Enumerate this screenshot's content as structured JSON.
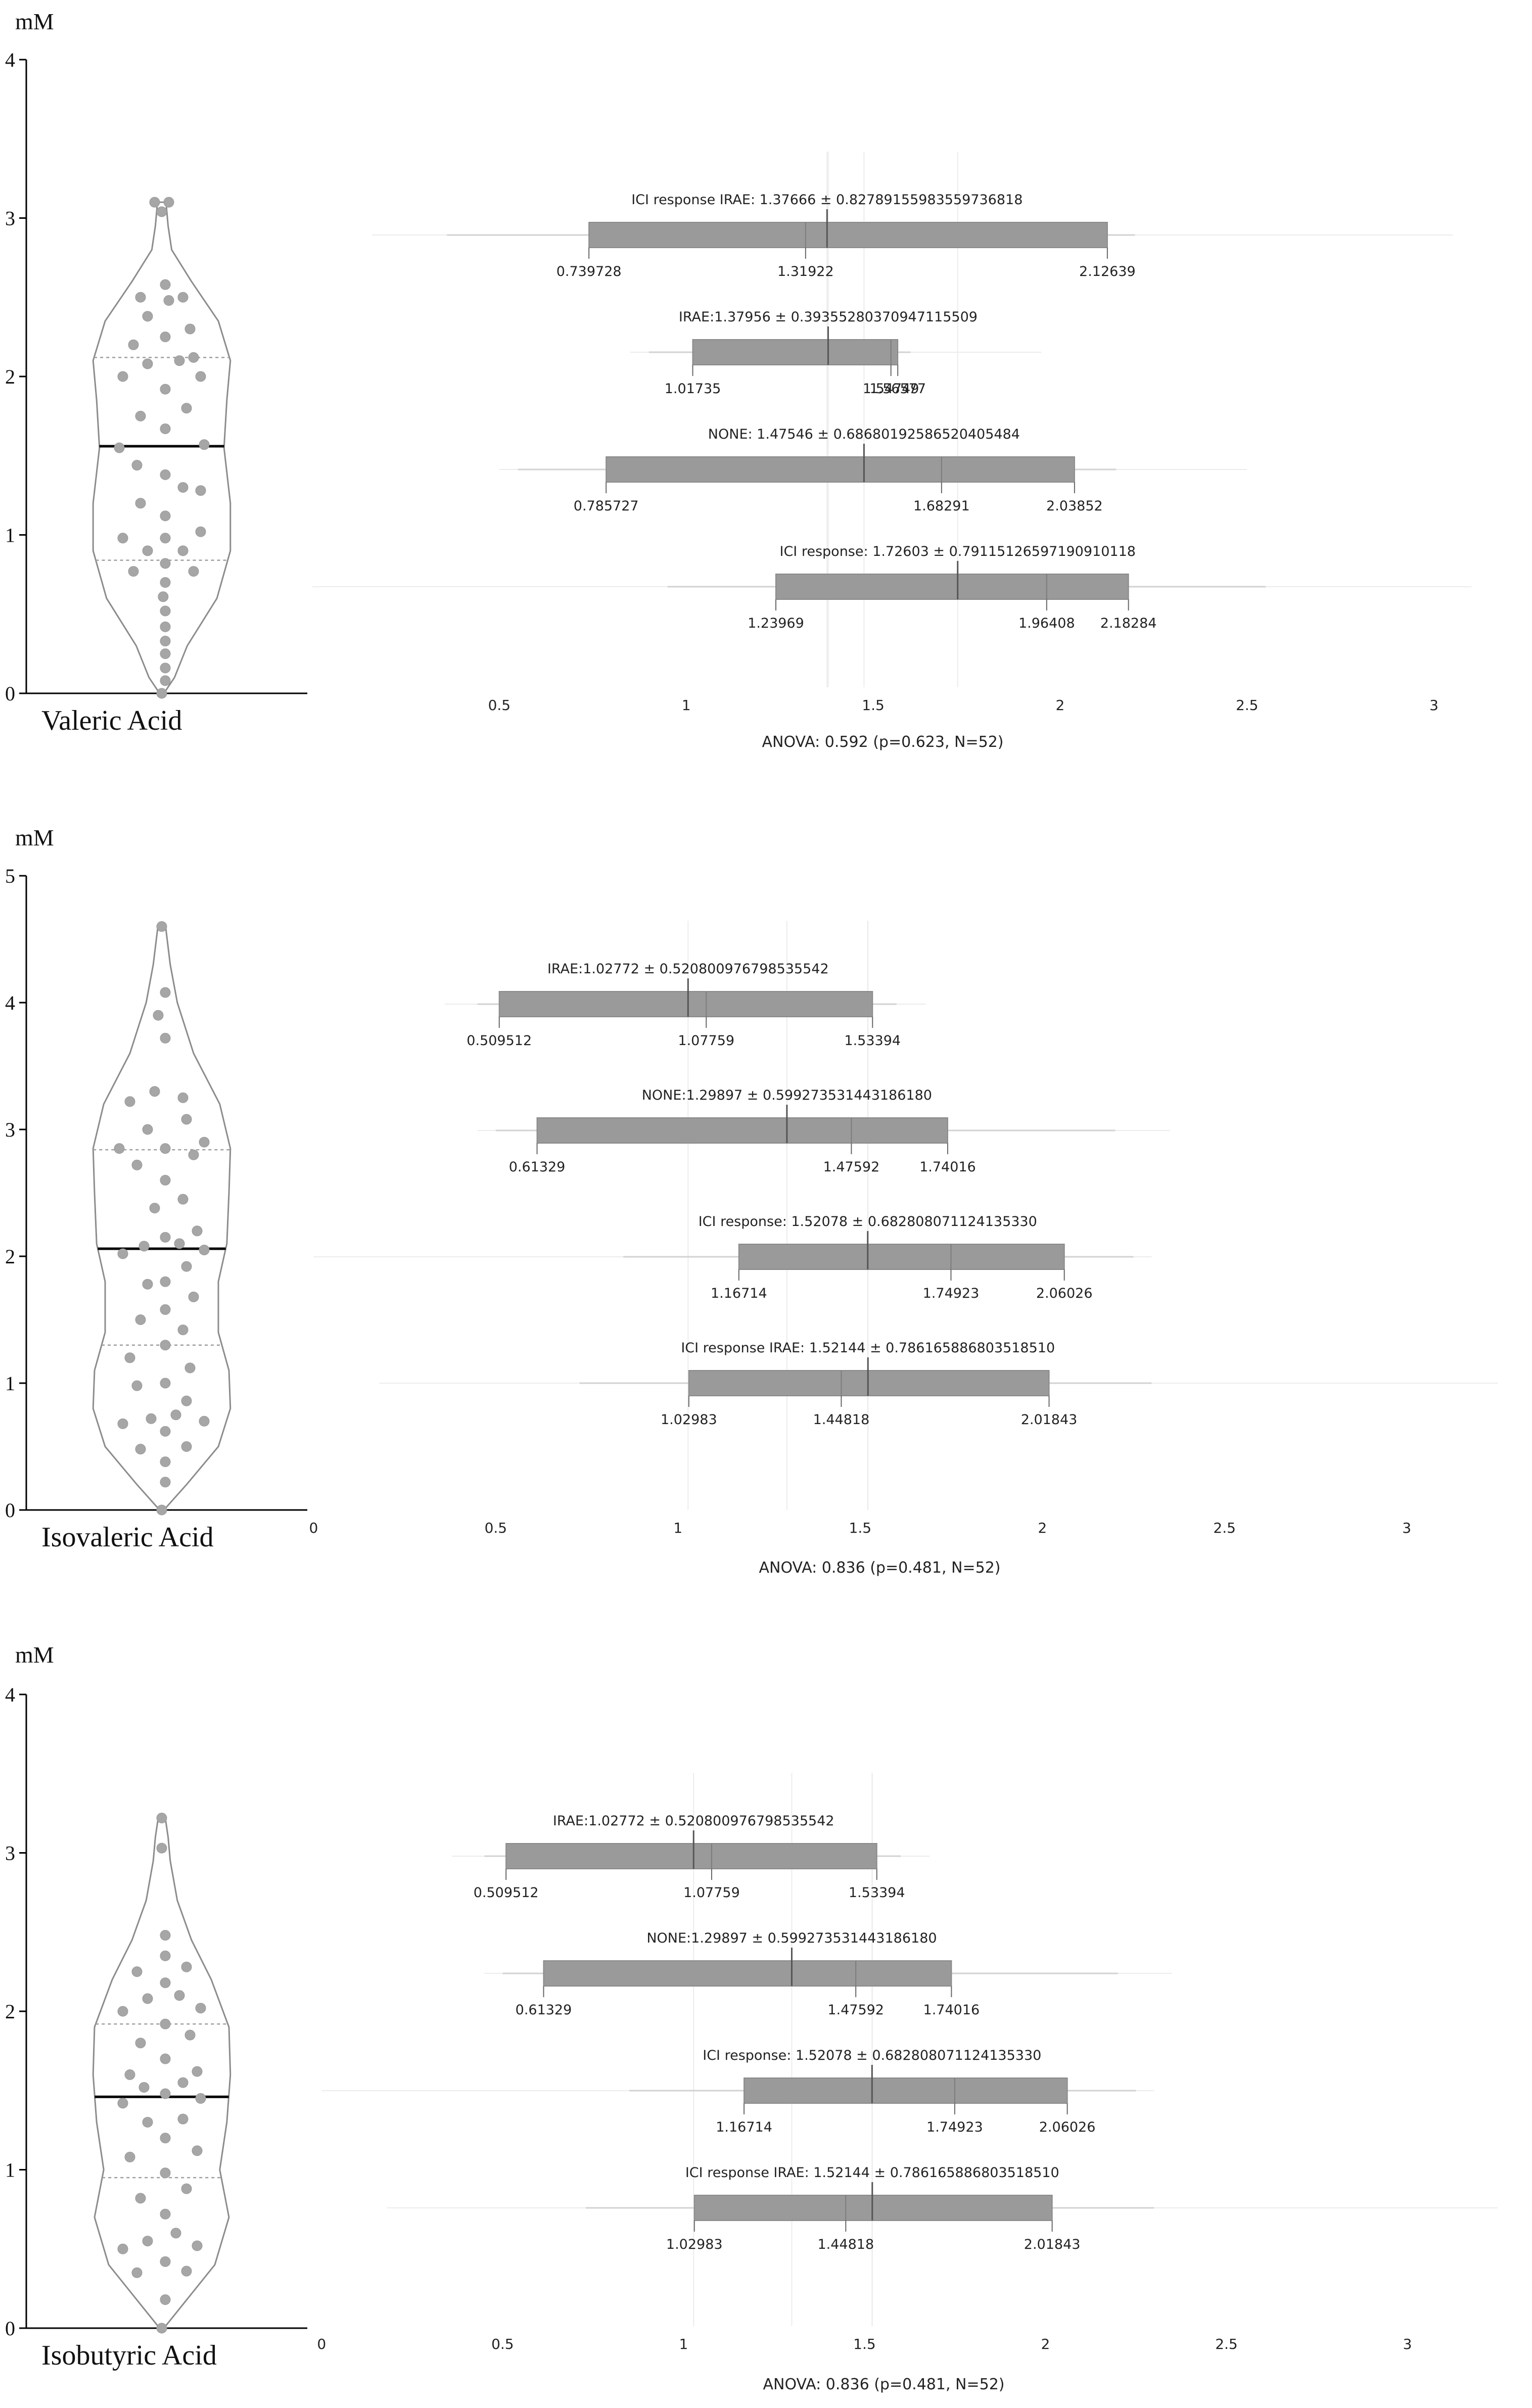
{
  "colors": {
    "box_fill": "#9a9a9a",
    "box_stroke": "#8a8a8a",
    "whisker": "#e2e2e2",
    "axis": "#000000",
    "violin_outline": "#8c8c8c",
    "dot": "#a6a6a6",
    "median_line": "#000000",
    "quartile_line": "#9e9e9e",
    "text": "#222222",
    "grid": "#ececec"
  },
  "chart_data": [
    {
      "panel": "valeric",
      "type": "violin+box",
      "unit_label": "mM",
      "violin": {
        "label": "Valeric Acid",
        "yticks": [
          "0",
          "1",
          "2",
          "3",
          "4"
        ],
        "ylim": [
          0,
          4
        ],
        "median": 1.56,
        "q1": 0.84,
        "q3": 2.12,
        "width_profile": [
          [
            0,
            0.03
          ],
          [
            0.1,
            0.18
          ],
          [
            0.3,
            0.36
          ],
          [
            0.6,
            0.78
          ],
          [
            0.9,
            0.97
          ],
          [
            1.2,
            0.97
          ],
          [
            1.55,
            0.88
          ],
          [
            1.85,
            0.92
          ],
          [
            2.1,
            0.97
          ],
          [
            2.35,
            0.8
          ],
          [
            2.6,
            0.42
          ],
          [
            2.8,
            0.14
          ],
          [
            2.95,
            0.09
          ],
          [
            3.1,
            0.06
          ]
        ],
        "points": [
          [
            0.0,
            0
          ],
          [
            0.08,
            0.05
          ],
          [
            0.16,
            0.05
          ],
          [
            0.25,
            0.05
          ],
          [
            0.33,
            0.05
          ],
          [
            0.42,
            0.05
          ],
          [
            0.52,
            0.05
          ],
          [
            0.61,
            0.02
          ],
          [
            0.7,
            0.05
          ],
          [
            0.77,
            -0.4
          ],
          [
            0.77,
            0.45
          ],
          [
            0.82,
            0.05
          ],
          [
            0.9,
            -0.2
          ],
          [
            0.9,
            0.3
          ],
          [
            0.98,
            -0.55
          ],
          [
            0.98,
            0.05
          ],
          [
            1.02,
            0.55
          ],
          [
            1.12,
            0.05
          ],
          [
            1.2,
            -0.3
          ],
          [
            1.28,
            0.55
          ],
          [
            1.3,
            0.3
          ],
          [
            1.38,
            0.05
          ],
          [
            1.44,
            -0.35
          ],
          [
            1.55,
            -0.6
          ],
          [
            1.57,
            0.6
          ],
          [
            1.67,
            0.05
          ],
          [
            1.75,
            -0.3
          ],
          [
            1.8,
            0.35
          ],
          [
            1.92,
            0.05
          ],
          [
            2.0,
            -0.55
          ],
          [
            2.0,
            0.55
          ],
          [
            2.08,
            -0.2
          ],
          [
            2.1,
            0.25
          ],
          [
            2.12,
            0.45
          ],
          [
            2.2,
            -0.4
          ],
          [
            2.25,
            0.05
          ],
          [
            2.3,
            0.4
          ],
          [
            2.38,
            -0.2
          ],
          [
            2.48,
            0.1
          ],
          [
            2.5,
            -0.3
          ],
          [
            2.5,
            0.3
          ],
          [
            2.58,
            0.05
          ],
          [
            3.04,
            0.0
          ],
          [
            3.1,
            -0.1
          ],
          [
            3.1,
            0.1
          ]
        ]
      },
      "box": {
        "xticks": [
          "0.5",
          "1",
          "1.5",
          "2",
          "2.5",
          "3"
        ],
        "xlim": [
          0.0,
          3.2
        ],
        "anova": "ANOVA: 0.592 (p=0.623, N=52)",
        "groups": [
          {
            "title": "ICI response IRAE: 1.37666 ± 0.82789155983559736818",
            "mean": 1.37666,
            "q1": 0.739728,
            "median": 1.31922,
            "q3": 2.12639,
            "q1_label": "0.739728",
            "median_label": "1.31922",
            "q3_label": "2.12639",
            "whisker_inner": [
              0.36,
              2.2
            ],
            "whisker_outer": [
              0.16,
              3.05
            ]
          },
          {
            "title": "IRAE:1.37956 ± 0.39355280370947115509",
            "mean": 1.37956,
            "q1": 1.01735,
            "median": 1.54749,
            "q3": 1.56577,
            "q1_label": "1.01735",
            "median_label": "1.54749",
            "q3_label": "1.56577",
            "whisker_inner": [
              0.9,
              1.6
            ],
            "whisker_outer": [
              0.85,
              1.95
            ]
          },
          {
            "title": "NONE: 1.47546 ± 0.68680192586520405484",
            "mean": 1.47546,
            "q1": 0.785727,
            "median": 1.68291,
            "q3": 2.03852,
            "q1_label": "0.785727",
            "median_label": "1.68291",
            "q3_label": "2.03852",
            "whisker_inner": [
              0.55,
              2.15
            ],
            "whisker_outer": [
              0.5,
              2.5
            ]
          },
          {
            "title": "ICI response: 1.72603 ± 0.79115126597190910118",
            "mean": 1.72603,
            "q1": 1.23969,
            "median": 1.96408,
            "q3": 2.18284,
            "q1_label": "1.23969",
            "median_label": "1.96408",
            "q3_label": "2.18284",
            "whisker_inner": [
              0.95,
              2.55
            ],
            "whisker_outer": [
              0.0,
              3.1
            ]
          }
        ]
      }
    },
    {
      "panel": "isovaleric",
      "type": "violin+box",
      "unit_label": "mM",
      "violin": {
        "label": "Isovaleric Acid",
        "yticks": [
          "0",
          "1",
          "2",
          "3",
          "4",
          "5"
        ],
        "ylim": [
          0,
          5
        ],
        "median": 2.06,
        "q1": 1.3,
        "q3": 2.84,
        "width_profile": [
          [
            0,
            0.03
          ],
          [
            0.2,
            0.35
          ],
          [
            0.5,
            0.8
          ],
          [
            0.8,
            0.97
          ],
          [
            1.1,
            0.95
          ],
          [
            1.4,
            0.8
          ],
          [
            1.8,
            0.8
          ],
          [
            2.1,
            0.92
          ],
          [
            2.5,
            0.95
          ],
          [
            2.85,
            0.97
          ],
          [
            3.2,
            0.82
          ],
          [
            3.6,
            0.45
          ],
          [
            4.0,
            0.22
          ],
          [
            4.3,
            0.12
          ],
          [
            4.62,
            0.05
          ]
        ],
        "points": [
          [
            0.0,
            0
          ],
          [
            0.22,
            0.05
          ],
          [
            0.38,
            0.05
          ],
          [
            0.48,
            -0.3
          ],
          [
            0.5,
            0.35
          ],
          [
            0.62,
            0.05
          ],
          [
            0.68,
            -0.55
          ],
          [
            0.7,
            0.6
          ],
          [
            0.72,
            -0.15
          ],
          [
            0.75,
            0.2
          ],
          [
            0.86,
            0.35
          ],
          [
            0.98,
            -0.35
          ],
          [
            1.0,
            0.05
          ],
          [
            1.12,
            0.4
          ],
          [
            1.2,
            -0.45
          ],
          [
            1.3,
            0.05
          ],
          [
            1.42,
            0.3
          ],
          [
            1.5,
            -0.3
          ],
          [
            1.58,
            0.05
          ],
          [
            1.68,
            0.45
          ],
          [
            1.78,
            -0.2
          ],
          [
            1.8,
            0.05
          ],
          [
            1.92,
            0.35
          ],
          [
            2.02,
            -0.55
          ],
          [
            2.05,
            0.6
          ],
          [
            2.08,
            -0.25
          ],
          [
            2.1,
            0.25
          ],
          [
            2.15,
            0.05
          ],
          [
            2.2,
            0.5
          ],
          [
            2.38,
            -0.1
          ],
          [
            2.45,
            0.3
          ],
          [
            2.6,
            0.05
          ],
          [
            2.72,
            -0.35
          ],
          [
            2.8,
            0.45
          ],
          [
            2.85,
            -0.6
          ],
          [
            2.85,
            0.05
          ],
          [
            2.9,
            0.6
          ],
          [
            3.0,
            -0.2
          ],
          [
            3.08,
            0.35
          ],
          [
            3.22,
            -0.45
          ],
          [
            3.25,
            0.3
          ],
          [
            3.3,
            -0.1
          ],
          [
            3.72,
            0.05
          ],
          [
            3.9,
            -0.05
          ],
          [
            4.08,
            0.05
          ],
          [
            4.6,
            0.0
          ]
        ]
      },
      "box": {
        "xticks": [
          "0",
          "0.5",
          "1",
          "1.5",
          "2",
          "2.5",
          "3"
        ],
        "xlim": [
          -0.02,
          3.28
        ],
        "anova": "ANOVA: 0.836 (p=0.481, N=52)",
        "groups": [
          {
            "title": "IRAE:1.02772 ± 0.520800976798535542",
            "mean": 1.02772,
            "q1": 0.509512,
            "median": 1.07759,
            "q3": 1.53394,
            "q1_label": "0.509512",
            "median_label": "1.07759",
            "q3_label": "1.53394",
            "whisker_inner": [
              0.45,
              1.6
            ],
            "whisker_outer": [
              0.36,
              1.68
            ]
          },
          {
            "title": "NONE:1.29897 ± 0.599273531443186180",
            "mean": 1.29897,
            "q1": 0.61329,
            "median": 1.47592,
            "q3": 1.74016,
            "q1_label": "0.61329",
            "median_label": "1.47592",
            "q3_label": "1.74016",
            "whisker_inner": [
              0.5,
              2.2
            ],
            "whisker_outer": [
              0.45,
              2.35
            ]
          },
          {
            "title": "ICI response: 1.52078 ± 0.682808071124135330",
            "mean": 1.52078,
            "q1": 1.16714,
            "median": 1.74923,
            "q3": 2.06026,
            "q1_label": "1.16714",
            "median_label": "1.74923",
            "q3_label": "2.06026",
            "whisker_inner": [
              0.85,
              2.25
            ],
            "whisker_outer": [
              0.0,
              2.3
            ]
          },
          {
            "title": "ICI response IRAE: 1.52144 ± 0.786165886803518510",
            "mean": 1.52144,
            "q1": 1.02983,
            "median": 1.44818,
            "q3": 2.01843,
            "q1_label": "1.02983",
            "median_label": "1.44818",
            "q3_label": "2.01843",
            "whisker_inner": [
              0.73,
              2.3
            ],
            "whisker_outer": [
              0.18,
              3.25
            ]
          }
        ]
      }
    },
    {
      "panel": "isobutyric",
      "type": "violin+box",
      "unit_label": "mM",
      "violin": {
        "label": "Isobutyric Acid",
        "yticks": [
          "0",
          "1",
          "2",
          "3",
          "4"
        ],
        "ylim": [
          0,
          4
        ],
        "median": 1.46,
        "q1": 0.95,
        "q3": 1.92,
        "width_profile": [
          [
            0,
            0.03
          ],
          [
            0.15,
            0.3
          ],
          [
            0.4,
            0.75
          ],
          [
            0.7,
            0.95
          ],
          [
            1.0,
            0.82
          ],
          [
            1.3,
            0.92
          ],
          [
            1.6,
            0.97
          ],
          [
            1.9,
            0.95
          ],
          [
            2.2,
            0.7
          ],
          [
            2.45,
            0.42
          ],
          [
            2.7,
            0.22
          ],
          [
            2.95,
            0.12
          ],
          [
            3.1,
            0.09
          ],
          [
            3.22,
            0.05
          ]
        ],
        "points": [
          [
            0.0,
            0
          ],
          [
            0.18,
            0.05
          ],
          [
            0.35,
            -0.35
          ],
          [
            0.36,
            0.35
          ],
          [
            0.42,
            0.05
          ],
          [
            0.5,
            -0.55
          ],
          [
            0.52,
            0.5
          ],
          [
            0.55,
            -0.2
          ],
          [
            0.6,
            0.2
          ],
          [
            0.72,
            0.05
          ],
          [
            0.82,
            -0.3
          ],
          [
            0.88,
            0.35
          ],
          [
            0.98,
            0.05
          ],
          [
            1.08,
            -0.45
          ],
          [
            1.12,
            0.5
          ],
          [
            1.2,
            0.05
          ],
          [
            1.3,
            -0.2
          ],
          [
            1.32,
            0.3
          ],
          [
            1.42,
            -0.55
          ],
          [
            1.45,
            0.55
          ],
          [
            1.48,
            0.05
          ],
          [
            1.52,
            -0.25
          ],
          [
            1.55,
            0.3
          ],
          [
            1.6,
            -0.45
          ],
          [
            1.62,
            0.5
          ],
          [
            1.7,
            0.05
          ],
          [
            1.8,
            -0.3
          ],
          [
            1.85,
            0.4
          ],
          [
            1.92,
            0.05
          ],
          [
            2.0,
            -0.55
          ],
          [
            2.02,
            0.55
          ],
          [
            2.08,
            -0.2
          ],
          [
            2.1,
            0.25
          ],
          [
            2.18,
            0.05
          ],
          [
            2.25,
            -0.35
          ],
          [
            2.28,
            0.35
          ],
          [
            2.35,
            0.05
          ],
          [
            2.48,
            0.05
          ],
          [
            3.03,
            0.0
          ],
          [
            3.22,
            0.0
          ]
        ]
      },
      "box": {
        "xticks": [
          "0",
          "0.5",
          "1",
          "1.5",
          "2",
          "2.5",
          "3"
        ],
        "xlim": [
          -0.02,
          3.28
        ],
        "anova": "ANOVA: 0.836 (p=0.481, N=52)",
        "groups": [
          {
            "title": "IRAE:1.02772 ± 0.520800976798535542",
            "mean": 1.02772,
            "q1": 0.509512,
            "median": 1.07759,
            "q3": 1.53394,
            "q1_label": "0.509512",
            "median_label": "1.07759",
            "q3_label": "1.53394",
            "whisker_inner": [
              0.45,
              1.6
            ],
            "whisker_outer": [
              0.36,
              1.68
            ]
          },
          {
            "title": "NONE:1.29897 ± 0.599273531443186180",
            "mean": 1.29897,
            "q1": 0.61329,
            "median": 1.47592,
            "q3": 1.74016,
            "q1_label": "0.61329",
            "median_label": "1.47592",
            "q3_label": "1.74016",
            "whisker_inner": [
              0.5,
              2.2
            ],
            "whisker_outer": [
              0.45,
              2.35
            ]
          },
          {
            "title": "ICI response: 1.52078 ± 0.682808071124135330",
            "mean": 1.52078,
            "q1": 1.16714,
            "median": 1.74923,
            "q3": 2.06026,
            "q1_label": "1.16714",
            "median_label": "1.74923",
            "q3_label": "2.06026",
            "whisker_inner": [
              0.85,
              2.25
            ],
            "whisker_outer": [
              0.0,
              2.3
            ]
          },
          {
            "title": "ICI response IRAE: 1.52144 ± 0.786165886803518510",
            "mean": 1.52144,
            "q1": 1.02983,
            "median": 1.44818,
            "q3": 2.01843,
            "q1_label": "1.02983",
            "median_label": "1.44818",
            "q3_label": "2.01843",
            "whisker_inner": [
              0.73,
              2.3
            ],
            "whisker_outer": [
              0.18,
              3.25
            ]
          }
        ]
      }
    }
  ]
}
